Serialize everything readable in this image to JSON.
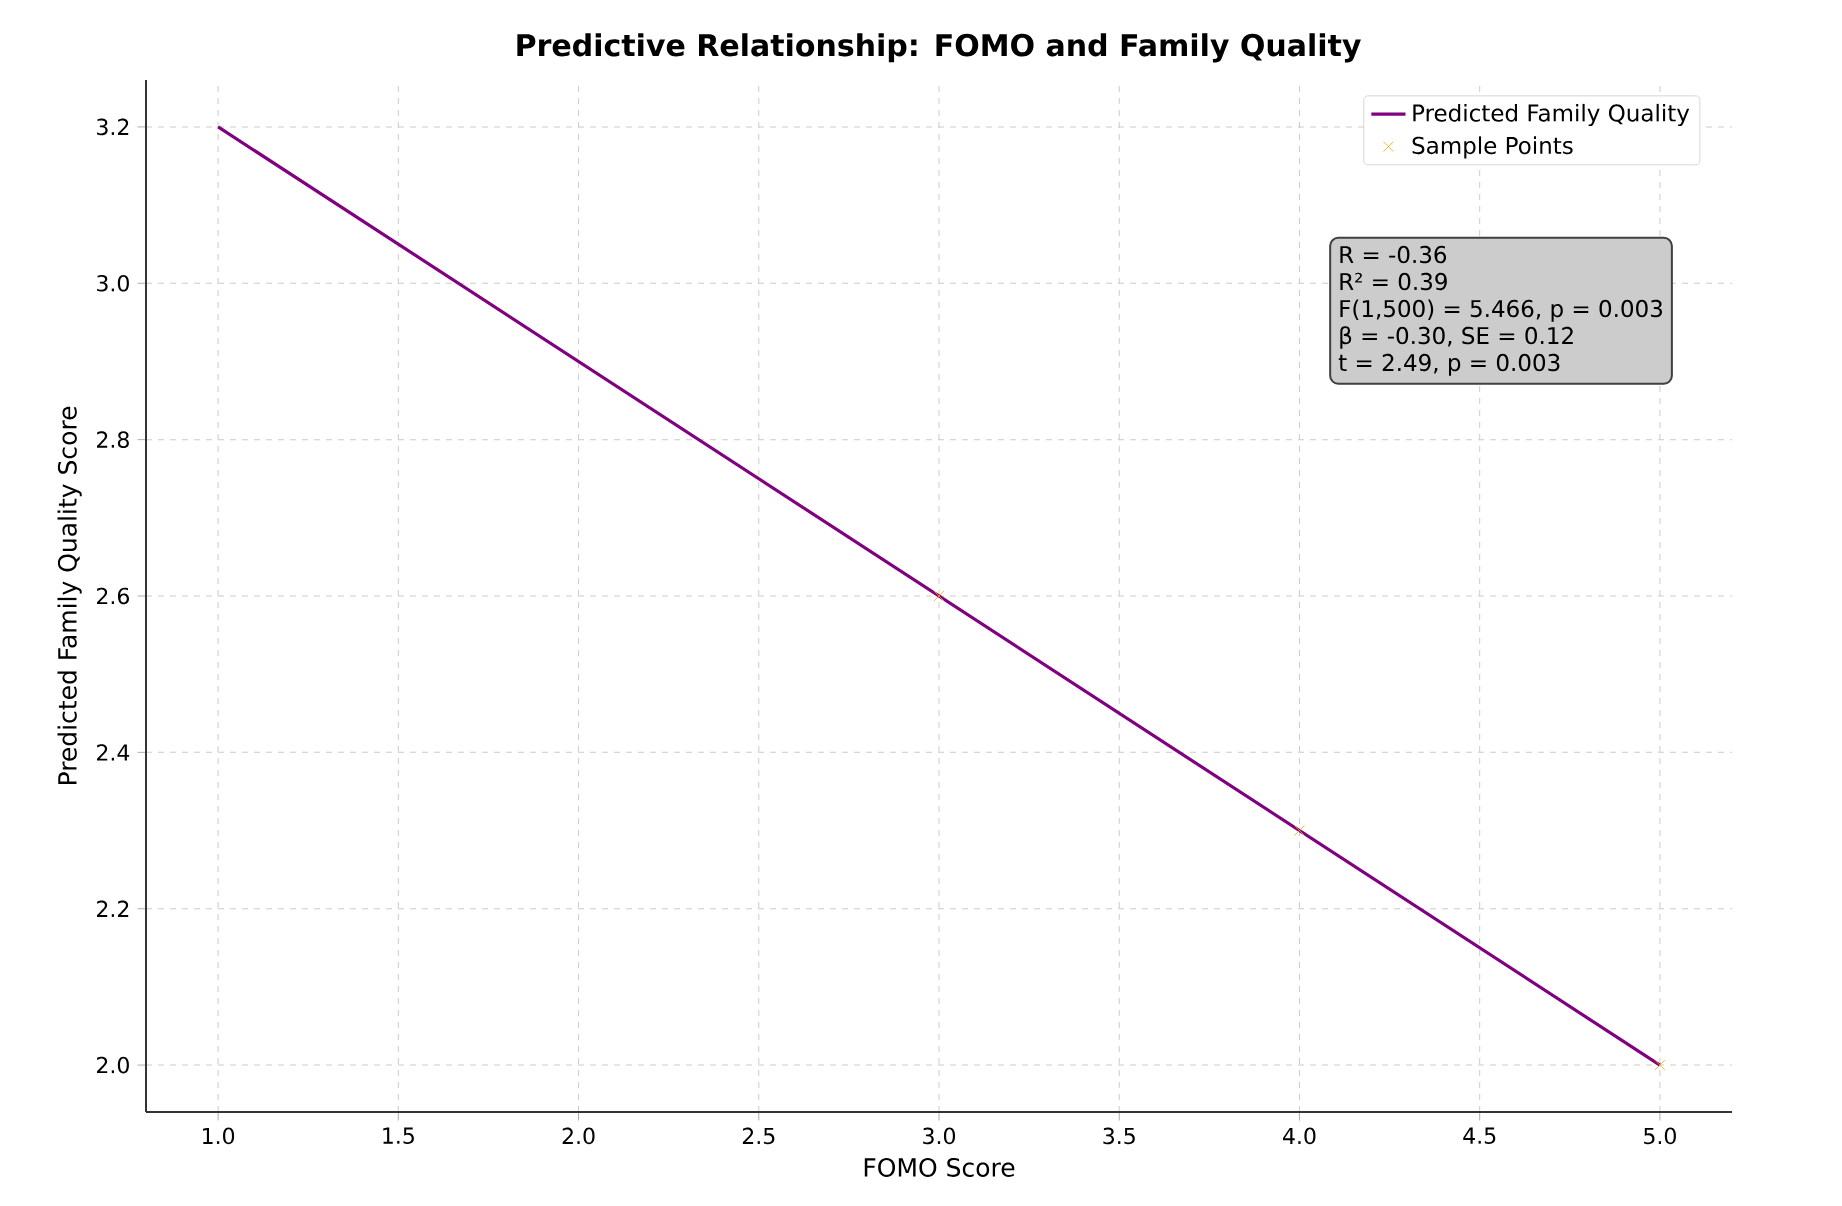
{
  "chart_data": {
    "type": "line",
    "title": "Predictive Relationship: FOMO and Family Quality",
    "xlabel": "FOMO Score",
    "ylabel": "Predicted Family Quality Score",
    "series": [
      {
        "name": "Predicted Family Quality",
        "color": "#800080",
        "x": [
          1.0,
          5.0
        ],
        "values": [
          3.2,
          2.0
        ],
        "marker": "none"
      },
      {
        "name": "Sample Points",
        "type": "scatter",
        "color": "#ffa500",
        "x": [
          3.0,
          4.0,
          5.0
        ],
        "values": [
          2.6,
          2.3,
          2.0
        ],
        "marker": "cross"
      }
    ],
    "xlim": [
      0.8,
      5.2
    ],
    "xticks": [
      {
        "value": 1.0,
        "label": "1.0"
      },
      1.5,
      {
        "value": 2.0,
        "label": "2.0"
      },
      2.5,
      {
        "value": 3.0,
        "label": "3.0"
      },
      3.5,
      {
        "value": 4.0,
        "label": "4.0"
      },
      4.5,
      {
        "value": 5.0,
        "label": "5.0"
      }
    ],
    "ylim": [
      1.94,
      3.26
    ],
    "yticks": [
      {
        "value": 2.0,
        "label": "2.0"
      },
      2.2,
      2.4,
      2.6,
      2.8,
      {
        "value": 3.0,
        "label": "3.0"
      },
      3.2
    ],
    "grid": true,
    "legend": "top right",
    "annotations": [
      "R = -0.36",
      "R² = 0.39",
      "F(1,500) = 5.466, p = 0.003",
      "β = -0.30, SE = 0.12",
      "t = 2.49, p = 0.003"
    ]
  }
}
